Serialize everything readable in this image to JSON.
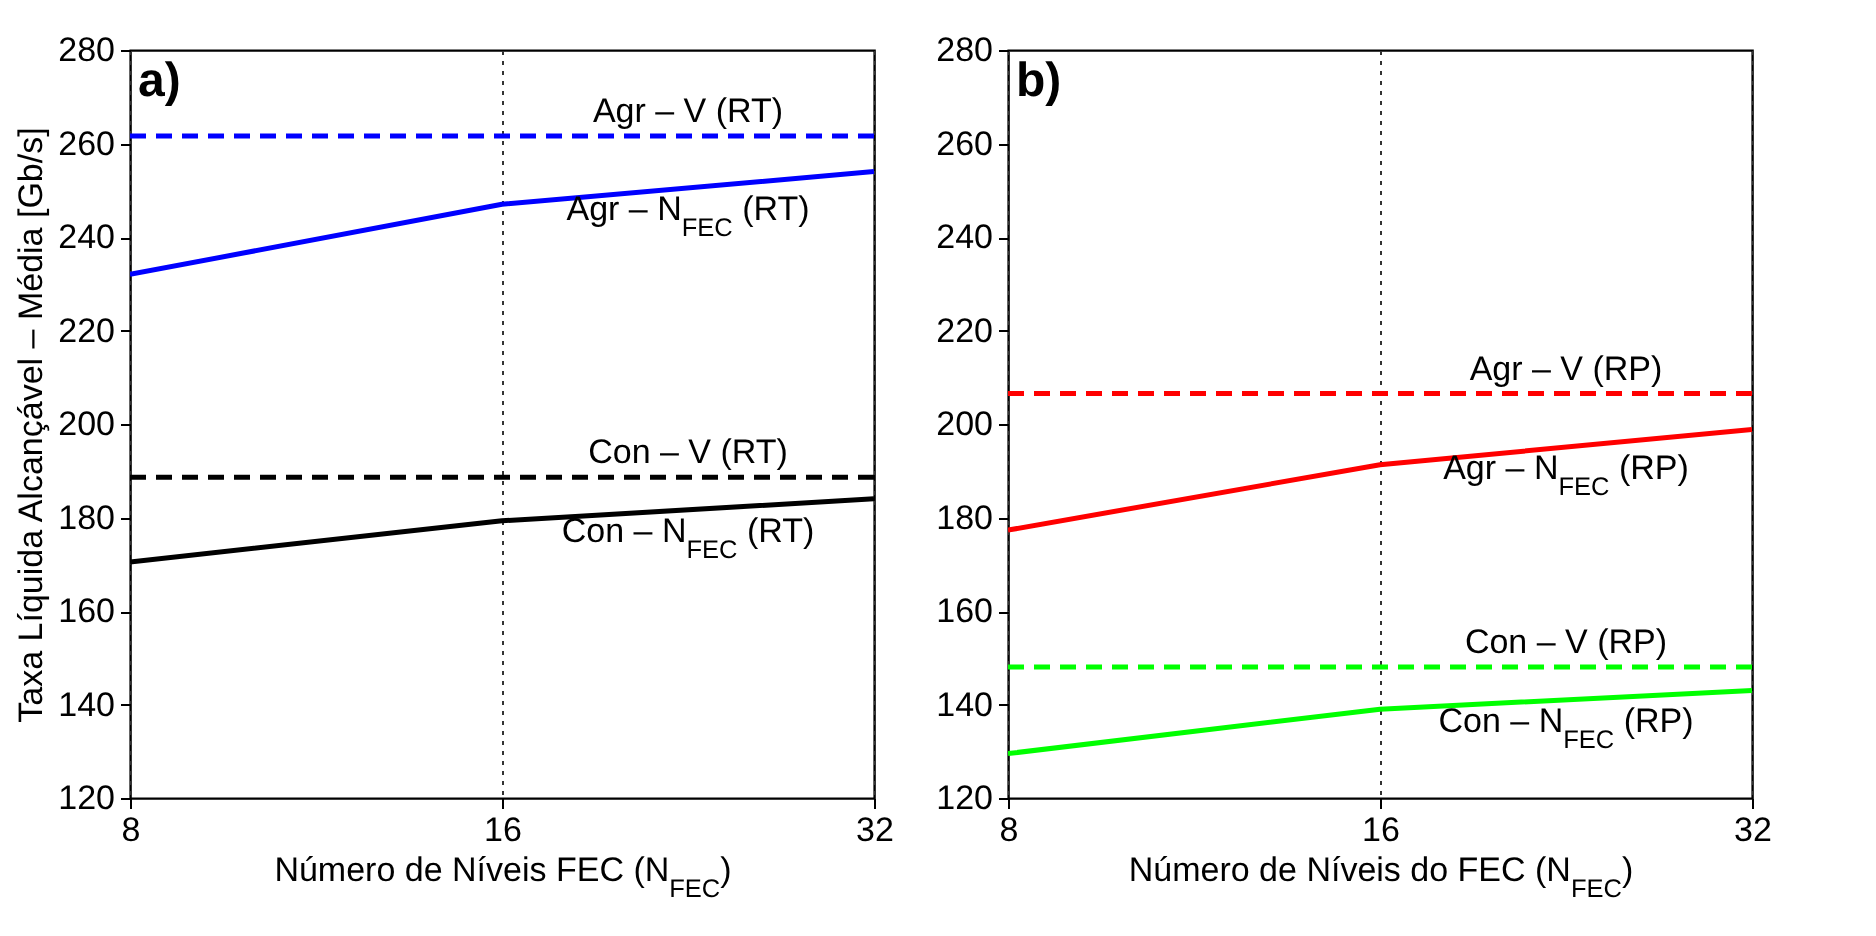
{
  "chart_data": [
    {
      "type": "line",
      "title": "a)",
      "xlabel": "Número de Níveis FEC (N$_{FEC}$)",
      "ylabel": "Taxa Líquida Alcançável – Média [Gb/s]",
      "log": "x",
      "xlim": [
        8,
        32
      ],
      "xticks": [
        8,
        16,
        32
      ],
      "ylim": [
        120,
        280
      ],
      "yticks": [
        120,
        140,
        160,
        180,
        200,
        220,
        240,
        260,
        280
      ],
      "grid": "x",
      "x": [
        8,
        16,
        32
      ],
      "series": [
        {
          "name": "Agr – V (RT)",
          "color": "#0000ff",
          "line_style": "dashed",
          "values": [
            261.6,
            261.6,
            261.6
          ]
        },
        {
          "name": "Agr – N$_{FEC}$ (RT)",
          "color": "#0000ff",
          "line_style": "solid",
          "values": [
            232,
            247,
            254
          ]
        },
        {
          "name": "Con – V (RT)",
          "color": "#000000",
          "line_style": "dashed",
          "values": [
            188.6,
            188.6,
            188.6
          ]
        },
        {
          "name": "Con – N$_{FEC}$ (RT)",
          "color": "#000000",
          "line_style": "solid",
          "values": [
            170.5,
            179.3,
            184
          ]
        }
      ]
    },
    {
      "type": "line",
      "title": "b)",
      "xlabel": "Número de Níveis do FEC (N$_{FEC}$)",
      "log": "x",
      "xlim": [
        8,
        32
      ],
      "xticks": [
        8,
        16,
        32
      ],
      "ylim": [
        120,
        280
      ],
      "yticks": [
        120,
        140,
        160,
        180,
        200,
        220,
        240,
        260,
        280
      ],
      "grid": "x",
      "x": [
        8,
        16,
        32
      ],
      "series": [
        {
          "name": "Agr – V (RP)",
          "color": "#ff0000",
          "line_style": "dashed",
          "values": [
            206.5,
            206.5,
            206.5
          ]
        },
        {
          "name": "Agr – N$_{FEC}$ (RP)",
          "color": "#ff0000",
          "line_style": "solid",
          "values": [
            177.3,
            191.3,
            198.8
          ]
        },
        {
          "name": "Con – V (RP)",
          "color": "#00ff00",
          "line_style": "dashed",
          "values": [
            148,
            148,
            148
          ]
        },
        {
          "name": "Con – N$_{FEC}$ (RP)",
          "color": "#00ff00",
          "line_style": "solid",
          "values": [
            129.5,
            139,
            143
          ]
        }
      ]
    }
  ]
}
